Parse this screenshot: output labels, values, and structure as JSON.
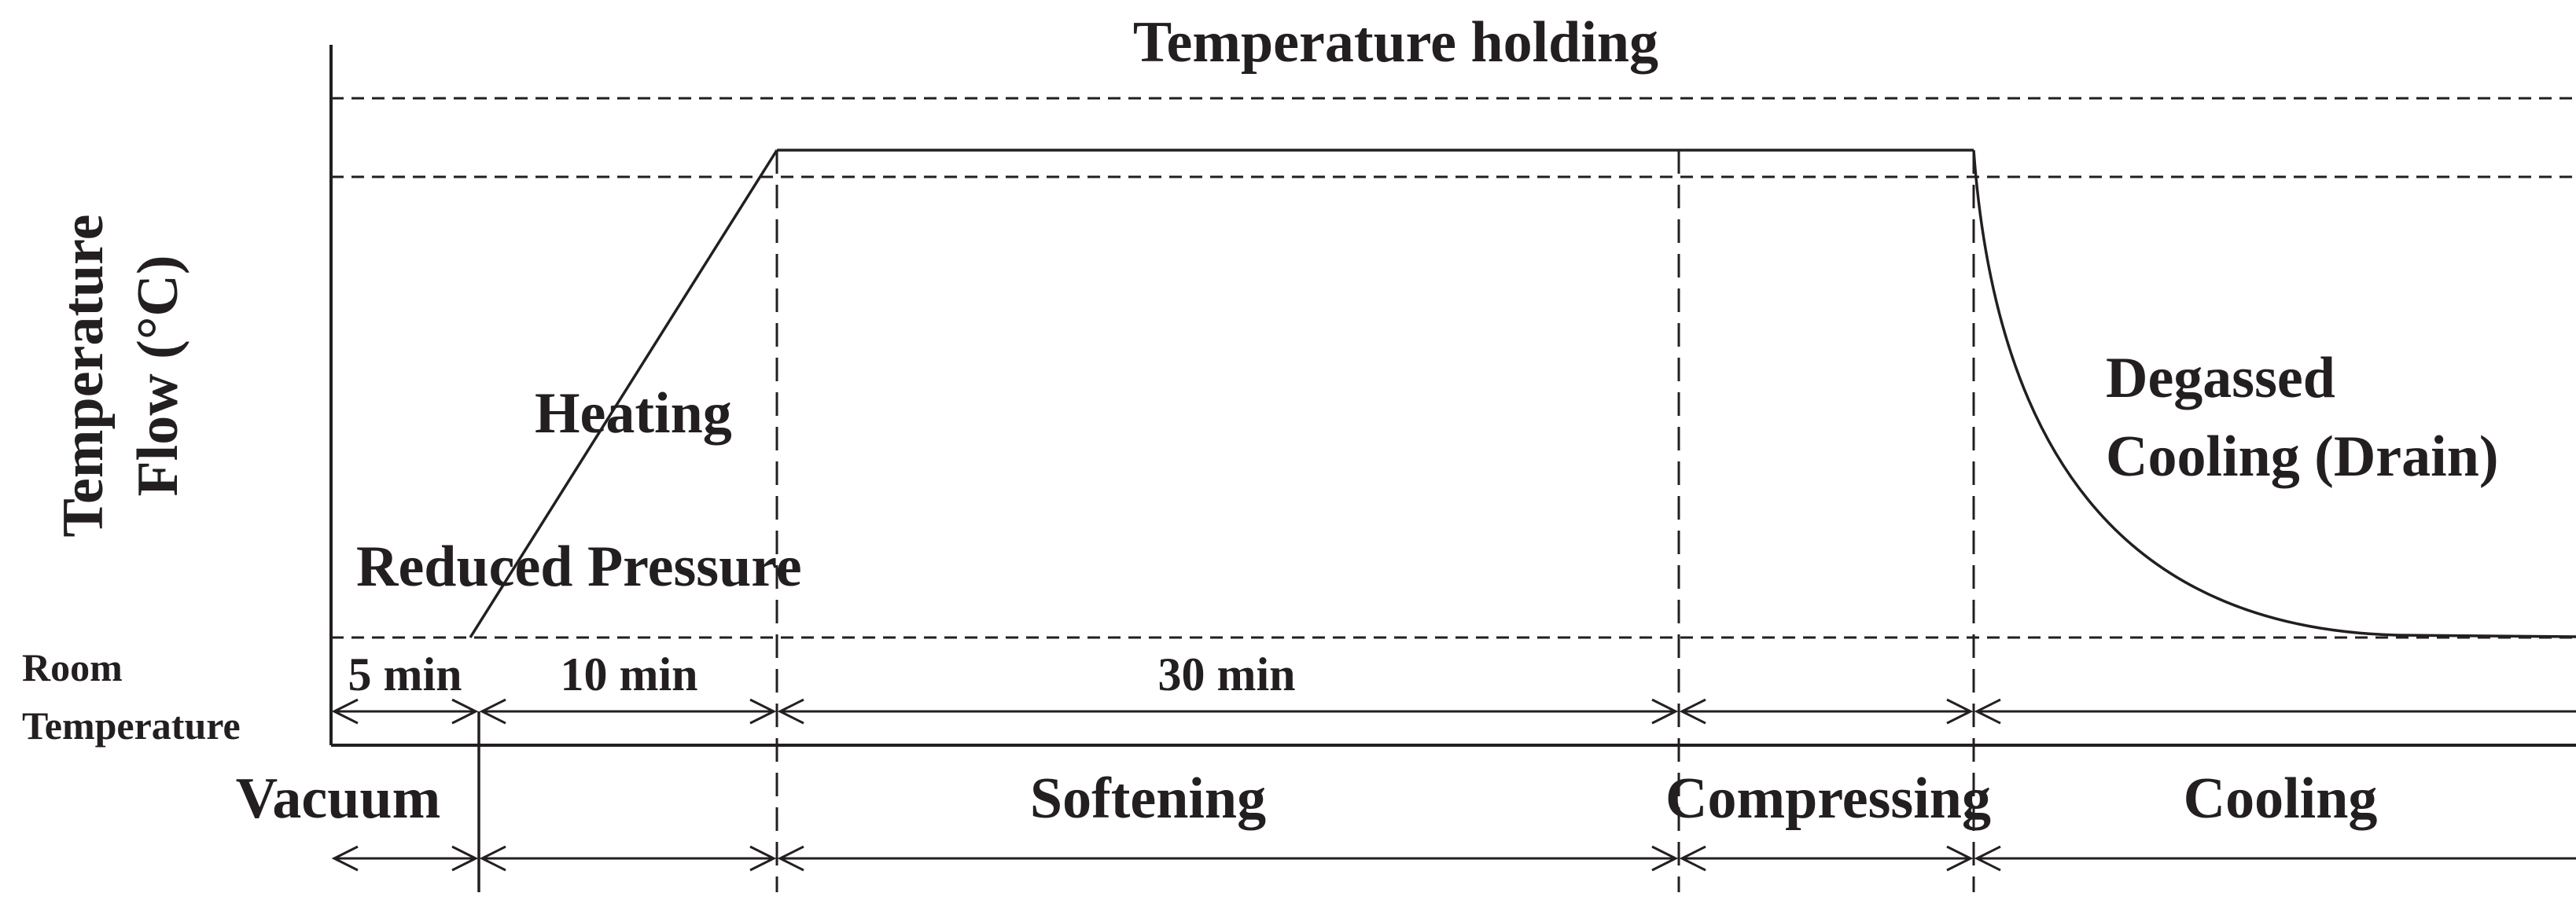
{
  "title": "Temperature holding",
  "y_axis": {
    "line1": "Temperature",
    "line2": "Flow (°C)"
  },
  "room_temperature": {
    "line1": "Room",
    "line2": "Temperature"
  },
  "curve_labels": {
    "heating": "Heating",
    "reduced_pressure": "Reduced Pressure",
    "cooling_line1": "Degassed",
    "cooling_line2": "Cooling (Drain)"
  },
  "durations": [
    {
      "label": "5 min"
    },
    {
      "label": "10 min"
    },
    {
      "label": "30 min"
    }
  ],
  "phases": [
    {
      "label": "Vacuum"
    },
    {
      "label": "Softening"
    },
    {
      "label": "Compressing"
    },
    {
      "label": "Cooling"
    }
  ]
}
